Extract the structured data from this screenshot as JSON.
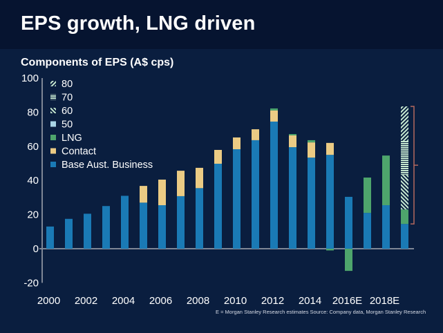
{
  "header": {
    "title": "EPS growth, LNG driven"
  },
  "subtitle": "Components of EPS (A$ cps)",
  "footnote": "E = Morgan Stanley Research estimates  Source: Company data, Morgan Stanley Research",
  "colors": {
    "header_bg": "#061430",
    "body_bg": "#0a1e3f",
    "base": "#1a7ab5",
    "contact": "#ebcb84",
    "lng": "#4ea56c",
    "s50": "#a8d4e6",
    "pattern": "#c8ead2",
    "bracket": "#b5685e",
    "axis": "#7f8796"
  },
  "chart_data": {
    "type": "bar",
    "stacked": true,
    "title": "Components of EPS (A$ cps)",
    "xlabel": "",
    "ylabel": "A$ cps",
    "ylim": [
      -20,
      100
    ],
    "yticks": [
      100,
      80,
      60,
      40,
      20,
      0,
      -20
    ],
    "xtick_labels": [
      "2000",
      "2002",
      "2004",
      "2006",
      "2008",
      "2010",
      "2012",
      "2014",
      "2016E",
      "2018E"
    ],
    "categories": [
      "2000",
      "2001",
      "2002",
      "2003",
      "2004",
      "2005",
      "2006",
      "2007",
      "2008",
      "2009",
      "2010",
      "2011",
      "2012",
      "2013",
      "2014",
      "2015",
      "2016E",
      "2017E",
      "2018E",
      "2019E"
    ],
    "legend": {
      "placement": "top-left",
      "entries": [
        {
          "label": "80",
          "key": "s80"
        },
        {
          "label": "70",
          "key": "s70"
        },
        {
          "label": "60",
          "key": "s60"
        },
        {
          "label": "50",
          "key": "s50"
        },
        {
          "label": "LNG",
          "key": "lng"
        },
        {
          "label": "Contact",
          "key": "contact"
        },
        {
          "label": "Base Aust. Business",
          "key": "base"
        }
      ]
    },
    "series": [
      {
        "name": "Base Aust. Business",
        "key": "base",
        "values": [
          13,
          17.5,
          20.5,
          25,
          31,
          27,
          25.5,
          30.8,
          35.5,
          49.8,
          58.3,
          63.6,
          74.5,
          59.5,
          53.4,
          55,
          30.4,
          21,
          25.5,
          14.5
        ]
      },
      {
        "name": "Contact",
        "key": "contact",
        "values": [
          0,
          0,
          0,
          0,
          0,
          9.8,
          15,
          14.9,
          11.9,
          8.1,
          6.9,
          6.4,
          6.5,
          6.9,
          8.9,
          7,
          0,
          0,
          0,
          0
        ]
      },
      {
        "name": "LNG",
        "key": "lng",
        "values": [
          0,
          0,
          0,
          0,
          0,
          0,
          0,
          0,
          0,
          0,
          0,
          0,
          1.2,
          0.8,
          1.3,
          -1,
          -13,
          20.7,
          29.1,
          8.5
        ]
      },
      {
        "name": "50",
        "key": "s50",
        "values": [
          0,
          0,
          0,
          0,
          0,
          0,
          0,
          0,
          0,
          0,
          0,
          0,
          0,
          0,
          0,
          0,
          0,
          0,
          0,
          0
        ]
      },
      {
        "name": "60",
        "key": "s60",
        "values": [
          0,
          0,
          0,
          0,
          0,
          0,
          0,
          0,
          0,
          0,
          0,
          0,
          0,
          0,
          0,
          0,
          0,
          0,
          0,
          20.3
        ]
      },
      {
        "name": "70",
        "key": "s70",
        "values": [
          0,
          0,
          0,
          0,
          0,
          0,
          0,
          0,
          0,
          0,
          0,
          0,
          0,
          0,
          0,
          0,
          0,
          0,
          0,
          19.9
        ]
      },
      {
        "name": "80",
        "key": "s80",
        "values": [
          0,
          0,
          0,
          0,
          0,
          0,
          0,
          0,
          0,
          0,
          0,
          0,
          0,
          0,
          0,
          0,
          0,
          0,
          0,
          20.2
        ]
      }
    ],
    "annotations": [
      {
        "type": "bracket",
        "category": "2019E",
        "from": 14.5,
        "to": 83.4
      }
    ],
    "grid": false
  }
}
